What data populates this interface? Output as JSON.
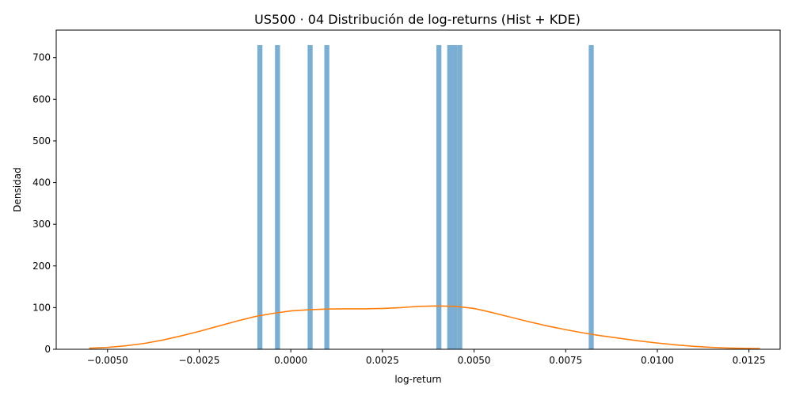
{
  "chart_data": {
    "type": "bar",
    "title": "US500 · 04 Distribución de log-returns (Hist + KDE)",
    "xlabel": "log-return",
    "ylabel": "Densidad",
    "xlim": [
      -0.0064,
      0.01335
    ],
    "ylim": [
      0,
      766
    ],
    "xticks": [
      -0.005,
      -0.0025,
      0.0,
      0.0025,
      0.005,
      0.0075,
      0.01,
      0.0125
    ],
    "xtick_labels": [
      "−0.0050",
      "−0.0025",
      "0.0000",
      "0.0025",
      "0.0050",
      "0.0075",
      "0.0100",
      "0.0125"
    ],
    "yticks": [
      0,
      100,
      200,
      300,
      400,
      500,
      600,
      700
    ],
    "ytick_labels": [
      "0",
      "100",
      "200",
      "300",
      "400",
      "500",
      "600",
      "700"
    ],
    "grid": false,
    "series": [
      {
        "type": "histogram",
        "color": "#7aafd3",
        "bar_width": 0.000137,
        "bars": [
          {
            "x": -0.000843,
            "y": 730
          },
          {
            "x": -0.000363,
            "y": 730
          },
          {
            "x": 0.000527,
            "y": 730
          },
          {
            "x": 0.000983,
            "y": 730
          },
          {
            "x": 0.00404,
            "y": 730
          },
          {
            "x": 0.004336,
            "y": 730
          },
          {
            "x": 0.004473,
            "y": 730
          },
          {
            "x": 0.00461,
            "y": 730
          },
          {
            "x": 0.008197,
            "y": 730
          }
        ]
      },
      {
        "type": "line",
        "color": "#ff7f0e",
        "x": [
          -0.0055,
          -0.005,
          -0.0045,
          -0.004,
          -0.0035,
          -0.003,
          -0.0025,
          -0.002,
          -0.0015,
          -0.001,
          -0.0005,
          0.0,
          0.0005,
          0.001,
          0.0015,
          0.002,
          0.0025,
          0.003,
          0.0035,
          0.004,
          0.0045,
          0.005,
          0.0055,
          0.006,
          0.0065,
          0.007,
          0.0075,
          0.008,
          0.0085,
          0.009,
          0.0095,
          0.01,
          0.0105,
          0.011,
          0.0115,
          0.012,
          0.0128
        ],
        "y": [
          2.5,
          4.5,
          8.5,
          14,
          22,
          32,
          43,
          55,
          67,
          78,
          86,
          92,
          95,
          96.5,
          97,
          97,
          98,
          100,
          103,
          104,
          103,
          98,
          88,
          77,
          66,
          56,
          47,
          39,
          32,
          26,
          20,
          15,
          10.5,
          7,
          4.5,
          2.8,
          1.5
        ]
      }
    ]
  }
}
